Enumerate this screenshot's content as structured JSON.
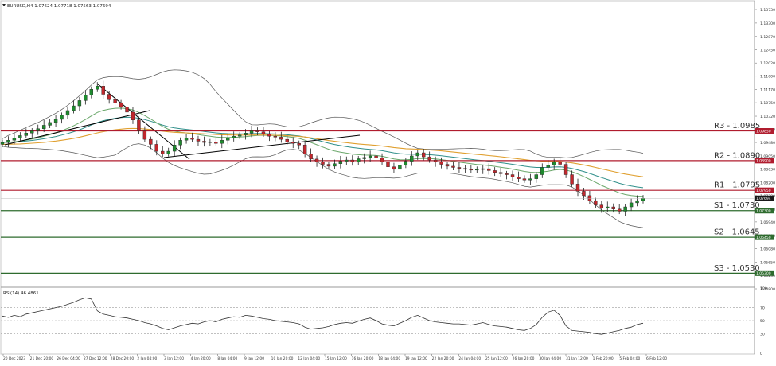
{
  "chart_data": {
    "type": "candlestick",
    "title": "EURUSD,H4  1.07624 1.07718 1.07563 1.07694",
    "symbol": "EURUSD,H4",
    "ohlc_header": {
      "open": "1.07624",
      "high": "1.07718",
      "low": "1.07563",
      "close": "1.07694"
    },
    "ylim": [
      1.0448,
      1.1407
    ],
    "y_ticks": [
      "1.13730",
      "1.13300",
      "1.12870",
      "1.12450",
      "1.12020",
      "1.11600",
      "1.11170",
      "1.10750",
      "1.10320",
      "1.09900",
      "1.09480",
      "1.09050",
      "1.08630",
      "1.08200",
      "1.07780",
      "1.07350",
      "1.06940",
      "1.06500",
      "1.06080",
      "1.05650",
      "1.05230",
      "1.04800"
    ],
    "x_ticks": [
      "20 Dec 2023",
      "21 Dec 20:00",
      "26 Dec 04:00",
      "27 Dec 12:00",
      "28 Dec 20:00",
      "2 Jan 04:00",
      "3 Jan 12:00",
      "4 Jan 20:00",
      "8 Jan 04:00",
      "9 Jan 12:00",
      "10 Jan 20:00",
      "12 Jan 04:00",
      "15 Jan 12:00",
      "16 Jan 20:00",
      "18 Jan 04:00",
      "19 Jan 12:00",
      "22 Jan 20:00",
      "24 Jan 04:00",
      "25 Jan 12:00",
      "26 Jan 20:00",
      "30 Jan 04:00",
      "31 Jan 12:00",
      "1 Feb 20:00",
      "5 Feb 04:00",
      "6 Feb 12:00"
    ],
    "levels": [
      {
        "name": "R3",
        "value": 1.0985,
        "label": "R3 - 1.0985",
        "tag": "1.09850",
        "color": "#b01c2e"
      },
      {
        "name": "R2",
        "value": 1.089,
        "label": "R2 - 1.0890",
        "tag": "1.08900",
        "color": "#b01c2e"
      },
      {
        "name": "R1",
        "value": 1.0795,
        "label": "R1 - 1.0795",
        "tag": "1.07950",
        "color": "#b01c2e"
      },
      {
        "name": "S1",
        "value": 1.073,
        "label": "S1 - 1.0730",
        "tag": "1.07300",
        "color": "#2e6b2e"
      },
      {
        "name": "S2",
        "value": 1.0645,
        "label": "S2 - 1.0645",
        "tag": "1.06450",
        "color": "#2e6b2e"
      },
      {
        "name": "S3",
        "value": 1.053,
        "label": "S3 - 1.0530",
        "tag": "1.05300",
        "color": "#2e6b2e"
      }
    ],
    "current_price": {
      "value": 1.07694,
      "tag": "1.07694"
    },
    "close_series": [
      1.0948,
      1.0955,
      1.0962,
      1.097,
      1.0978,
      1.0985,
      1.0992,
      1.1003,
      1.1012,
      1.1022,
      1.1035,
      1.105,
      1.1065,
      1.1082,
      1.11,
      1.1118,
      1.1128,
      1.1102,
      1.1085,
      1.1075,
      1.1062,
      1.1045,
      1.102,
      1.0985,
      1.0958,
      1.0942,
      1.092,
      1.0912,
      1.092,
      1.094,
      1.0955,
      1.0962,
      1.0958,
      1.0952,
      1.0948,
      1.095,
      1.0945,
      1.0955,
      1.0962,
      1.0968,
      1.0972,
      1.0978,
      1.0985,
      1.0982,
      1.0975,
      1.0968,
      1.0965,
      1.0958,
      1.095,
      1.0945,
      1.094,
      1.0912,
      1.0895,
      1.0885,
      1.0878,
      1.0872,
      1.088,
      1.0888,
      1.0892,
      1.0885,
      1.0896,
      1.09,
      1.0905,
      1.0898,
      1.0885,
      1.087,
      1.0862,
      1.0875,
      1.0888,
      1.0905,
      1.0915,
      1.0902,
      1.0892,
      1.0885,
      1.0878,
      1.0872,
      1.0868,
      1.0865,
      1.0862,
      1.086,
      1.0862,
      1.0864,
      1.0858,
      1.0852,
      1.0848,
      1.0845,
      1.0838,
      1.0832,
      1.0828,
      1.0832,
      1.0845,
      1.0868,
      1.0875,
      1.0885,
      1.0878,
      1.0845,
      1.0815,
      1.0792,
      1.0778,
      1.0762,
      1.0748,
      1.0738,
      1.0742,
      1.0735,
      1.0728,
      1.0742,
      1.0755,
      1.0762,
      1.0769
    ],
    "rsi": {
      "label": "RSI(14) 46.4861",
      "ylim": [
        0,
        100
      ],
      "levels": [
        70,
        50,
        30
      ],
      "tick_labels": [
        "100",
        "70",
        "50",
        "30",
        "0"
      ],
      "values": [
        57,
        55,
        58,
        56,
        60,
        62,
        64,
        66,
        68,
        70,
        72,
        75,
        78,
        82,
        85,
        83,
        65,
        60,
        58,
        56,
        55,
        54,
        52,
        50,
        47,
        45,
        42,
        38,
        36,
        39,
        42,
        44,
        46,
        45,
        48,
        50,
        48,
        52,
        54,
        56,
        55,
        58,
        57,
        55,
        53,
        52,
        50,
        49,
        48,
        47,
        45,
        40,
        37,
        38,
        39,
        41,
        44,
        46,
        47,
        46,
        49,
        52,
        54,
        50,
        45,
        43,
        42,
        46,
        50,
        55,
        58,
        54,
        50,
        48,
        47,
        46,
        45,
        45,
        44,
        43,
        45,
        47,
        44,
        42,
        41,
        40,
        38,
        36,
        35,
        38,
        44,
        55,
        63,
        66,
        58,
        42,
        35,
        34,
        33,
        32,
        30,
        29,
        31,
        33,
        35,
        38,
        40,
        44,
        46
      ]
    }
  }
}
